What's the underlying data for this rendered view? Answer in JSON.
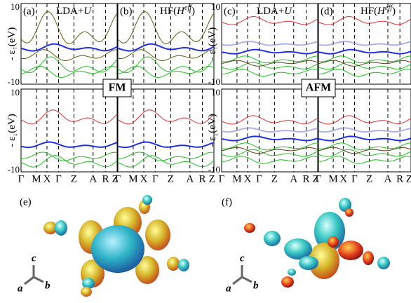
{
  "panels": [
    {
      "label": "(a)",
      "method": "LDA+",
      "method_italic": "U"
    },
    {
      "label": "(b)",
      "method": "HF(",
      "method_italic": "H",
      "method_sup": "eff",
      "method_end": ")"
    },
    {
      "label": "(c)",
      "method": "LDA+",
      "method_italic": "U"
    },
    {
      "label": "(d)",
      "method": "HF(",
      "method_italic": "H",
      "method_sup": "eff",
      "method_end": ")"
    }
  ],
  "y_ticks": {
    "top": "10",
    "bottom": "-10"
  },
  "y_labels": [
    {
      "prefix": "- ε",
      "sub": "↑",
      "suffix": "(eV)"
    },
    {
      "prefix": "- ε",
      "sub": "↓",
      "suffix": "(eV)"
    }
  ],
  "k_points": [
    "Γ",
    "M",
    "X",
    "Γ",
    "Z",
    "A",
    "R",
    "Z"
  ],
  "magnetic_orders": [
    "FM",
    "AFM"
  ],
  "orbital_panels": [
    "(e)",
    "(f)"
  ],
  "axes_labels": {
    "c": "c",
    "a": "a",
    "b": "b"
  }
}
